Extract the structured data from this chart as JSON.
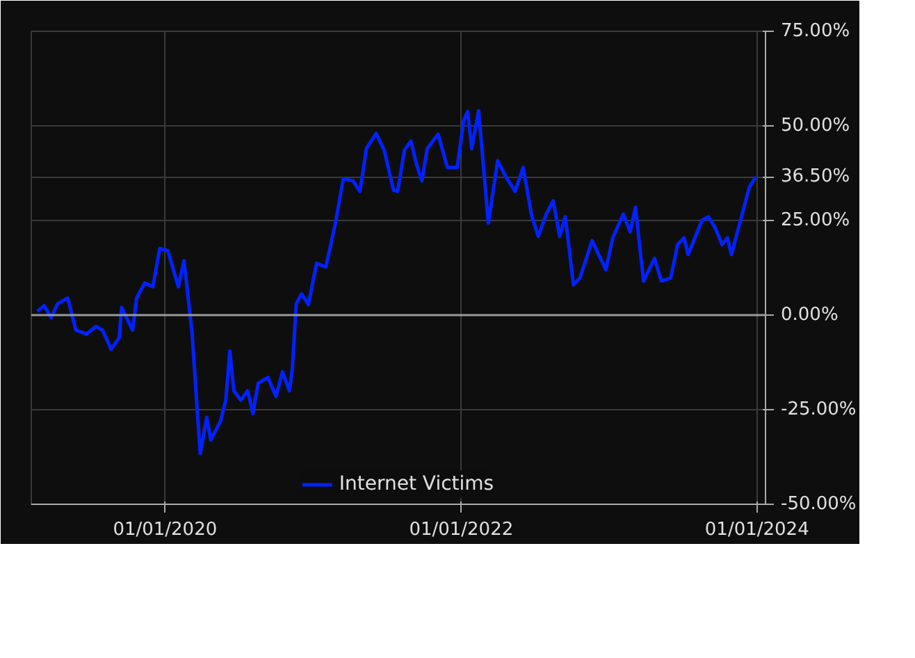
{
  "chart_data": {
    "type": "line",
    "x": [
      "2019-02-20",
      "2019-03-09",
      "2019-03-26",
      "2019-04-11",
      "2019-05-06",
      "2019-05-26",
      "2019-06-21",
      "2019-07-15",
      "2019-07-31",
      "2019-08-21",
      "2019-09-10",
      "2019-09-16",
      "2019-10-13",
      "2019-10-23",
      "2019-11-12",
      "2019-12-02",
      "2019-12-19",
      "2020-01-08",
      "2020-02-03",
      "2020-02-17",
      "2020-03-08",
      "2020-03-21",
      "2020-03-28",
      "2020-04-13",
      "2020-04-23",
      "2020-05-17",
      "2020-05-30",
      "2020-06-09",
      "2020-06-19",
      "2020-07-06",
      "2020-07-23",
      "2020-08-05",
      "2020-08-18",
      "2020-09-11",
      "2020-10-01",
      "2020-10-17",
      "2020-11-03",
      "2020-11-10",
      "2020-11-20",
      "2020-12-03",
      "2020-12-20",
      "2021-01-09",
      "2021-02-01",
      "2021-02-24",
      "2021-03-16",
      "2021-04-09",
      "2021-04-26",
      "2021-05-12",
      "2021-06-05",
      "2021-06-25",
      "2021-07-18",
      "2021-07-28",
      "2021-08-14",
      "2021-08-30",
      "2021-09-13",
      "2021-09-26",
      "2021-10-09",
      "2021-11-05",
      "2021-11-28",
      "2021-12-22",
      "2022-01-07",
      "2022-01-17",
      "2022-01-27",
      "2022-02-13",
      "2022-03-09",
      "2022-04-01",
      "2022-04-21",
      "2022-05-14",
      "2022-06-03",
      "2022-06-23",
      "2022-07-10",
      "2022-07-30",
      "2022-08-16",
      "2022-09-01",
      "2022-09-15",
      "2022-10-05",
      "2022-10-21",
      "2022-11-20",
      "2022-12-24",
      "2023-01-10",
      "2023-02-05",
      "2023-02-22",
      "2023-03-07",
      "2023-03-27",
      "2023-04-23",
      "2023-05-10",
      "2023-06-02",
      "2023-06-19",
      "2023-07-05",
      "2023-07-15",
      "2023-08-18",
      "2023-09-03",
      "2023-09-20",
      "2023-10-07",
      "2023-10-20",
      "2023-10-30",
      "2023-11-23",
      "2023-12-13",
      "2023-12-29"
    ],
    "series": [
      {
        "name": "Internet Victims",
        "color": "#0022ff",
        "values": [
          1,
          2.5,
          -0.7,
          3,
          4.5,
          -4,
          -5,
          -3,
          -4,
          -9,
          -6,
          2,
          -4,
          4.5,
          8.5,
          7.5,
          17.6,
          17,
          7.5,
          14.4,
          -5,
          -26,
          -36.6,
          -27,
          -33,
          -28,
          -22.5,
          -9.5,
          -20,
          -22.5,
          -20,
          -26,
          -18,
          -16.5,
          -21.5,
          -15,
          -20,
          -14.4,
          3,
          5.6,
          2.8,
          13.7,
          12.7,
          24,
          36,
          35.5,
          32.7,
          44,
          48,
          43.6,
          33,
          32.7,
          43.6,
          46,
          39.7,
          35.5,
          44,
          47.8,
          39,
          39,
          51.4,
          53.8,
          44,
          54,
          24.3,
          40.8,
          36.6,
          32.7,
          39,
          26.7,
          20.8,
          26.7,
          30.2,
          20.8,
          26,
          8,
          9.8,
          19.7,
          12,
          20.4,
          26.7,
          22,
          28.5,
          9,
          15,
          9,
          9.8,
          18.6,
          20.4,
          16,
          25,
          26,
          23,
          18.6,
          20.4,
          16,
          25.7,
          33.8,
          36.5
        ]
      }
    ],
    "xlim": [
      "2019-02-05",
      "2024-01-22"
    ],
    "xticks": [
      {
        "value": "2020-01-01",
        "label": "01/01/2020"
      },
      {
        "value": "2022-01-01",
        "label": "01/01/2022"
      },
      {
        "value": "2024-01-01",
        "label": "01/01/2024"
      }
    ],
    "ylim": [
      -50,
      75
    ],
    "yticks": [
      {
        "value": -50,
        "label": "-50.00%"
      },
      {
        "value": -25,
        "label": "-25.00%"
      },
      {
        "value": 0,
        "label": "0.00%"
      },
      {
        "value": 25,
        "label": "25.00%"
      },
      {
        "value": 36.5,
        "label": "36.50%"
      },
      {
        "value": 50,
        "label": "50.00%"
      },
      {
        "value": 75,
        "label": "75.00%"
      }
    ],
    "grid": true,
    "legend": "bottom",
    "line_style": "solid",
    "marker": "none"
  }
}
